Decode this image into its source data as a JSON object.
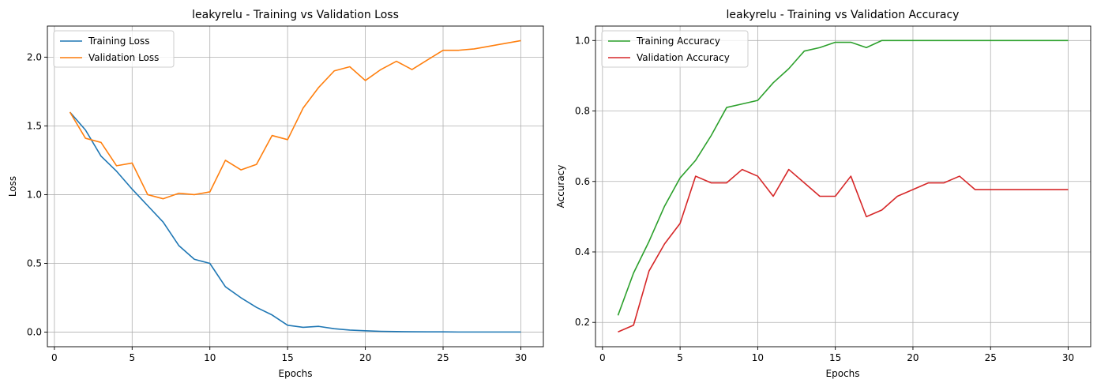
{
  "chart_data": [
    {
      "type": "line",
      "title": "leakyrelu - Training vs Validation Loss",
      "xlabel": "Epochs",
      "ylabel": "Loss",
      "xlim": [
        -0.45,
        31.45
      ],
      "ylim": [
        -0.106,
        2.226
      ],
      "xticks": [
        0,
        5,
        10,
        15,
        20,
        25,
        30
      ],
      "xtick_labels": [
        "0",
        "5",
        "10",
        "15",
        "20",
        "25",
        "30"
      ],
      "yticks": [
        0.0,
        0.5,
        1.0,
        1.5,
        2.0
      ],
      "ytick_labels": [
        "0.0",
        "0.5",
        "1.0",
        "1.5",
        "2.0"
      ],
      "grid": true,
      "legend": "upper-left",
      "x": [
        1,
        2,
        3,
        4,
        5,
        6,
        7,
        8,
        9,
        10,
        11,
        12,
        13,
        14,
        15,
        16,
        17,
        18,
        19,
        20,
        21,
        22,
        23,
        24,
        25,
        26,
        27,
        28,
        29,
        30
      ],
      "series": [
        {
          "name": "Training Loss",
          "color": "#1f77b4",
          "values": [
            1.6,
            1.47,
            1.28,
            1.17,
            1.04,
            0.92,
            0.8,
            0.63,
            0.53,
            0.5,
            0.33,
            0.25,
            0.18,
            0.125,
            0.05,
            0.035,
            0.042,
            0.025,
            0.015,
            0.01,
            0.006,
            0.004,
            0.003,
            0.002,
            0.002,
            0.001,
            0.001,
            0.001,
            0.001,
            0.001
          ]
        },
        {
          "name": "Validation Loss",
          "color": "#ff7f0e",
          "values": [
            1.6,
            1.41,
            1.38,
            1.21,
            1.23,
            1.0,
            0.97,
            1.01,
            1.0,
            1.02,
            1.25,
            1.18,
            1.22,
            1.43,
            1.4,
            1.63,
            1.78,
            1.9,
            1.93,
            1.83,
            1.91,
            1.97,
            1.91,
            1.98,
            2.05,
            2.05,
            2.06,
            2.08,
            2.1,
            2.12
          ]
        }
      ]
    },
    {
      "type": "line",
      "title": "leakyrelu - Training vs Validation Accuracy",
      "xlabel": "Epochs",
      "ylabel": "Accuracy",
      "xlim": [
        -0.45,
        31.45
      ],
      "ylim": [
        0.131,
        1.041
      ],
      "xticks": [
        0,
        5,
        10,
        15,
        20,
        25,
        30
      ],
      "xtick_labels": [
        "0",
        "5",
        "10",
        "15",
        "20",
        "25",
        "30"
      ],
      "yticks": [
        0.2,
        0.4,
        0.6,
        0.8,
        1.0
      ],
      "ytick_labels": [
        "0.2",
        "0.4",
        "0.6",
        "0.8",
        "1.0"
      ],
      "grid": true,
      "legend": "upper-left",
      "x": [
        1,
        2,
        3,
        4,
        5,
        6,
        7,
        8,
        9,
        10,
        11,
        12,
        13,
        14,
        15,
        16,
        17,
        18,
        19,
        20,
        21,
        22,
        23,
        24,
        25,
        26,
        27,
        28,
        29,
        30
      ],
      "series": [
        {
          "name": "Training Accuracy",
          "color": "#2ca02c",
          "values": [
            0.22,
            0.34,
            0.43,
            0.53,
            0.61,
            0.66,
            0.73,
            0.81,
            0.82,
            0.83,
            0.88,
            0.92,
            0.97,
            0.98,
            0.995,
            0.995,
            0.98,
            1.0,
            1.0,
            1.0,
            1.0,
            1.0,
            1.0,
            1.0,
            1.0,
            1.0,
            1.0,
            1.0,
            1.0,
            1.0
          ]
        },
        {
          "name": "Validation Accuracy",
          "color": "#d62728",
          "values": [
            0.173,
            0.192,
            0.346,
            0.423,
            0.481,
            0.615,
            0.596,
            0.596,
            0.634,
            0.615,
            0.558,
            0.634,
            0.596,
            0.558,
            0.558,
            0.615,
            0.5,
            0.519,
            0.558,
            0.577,
            0.596,
            0.596,
            0.615,
            0.577,
            0.577,
            0.577,
            0.577,
            0.577,
            0.577,
            0.577
          ]
        }
      ]
    }
  ]
}
